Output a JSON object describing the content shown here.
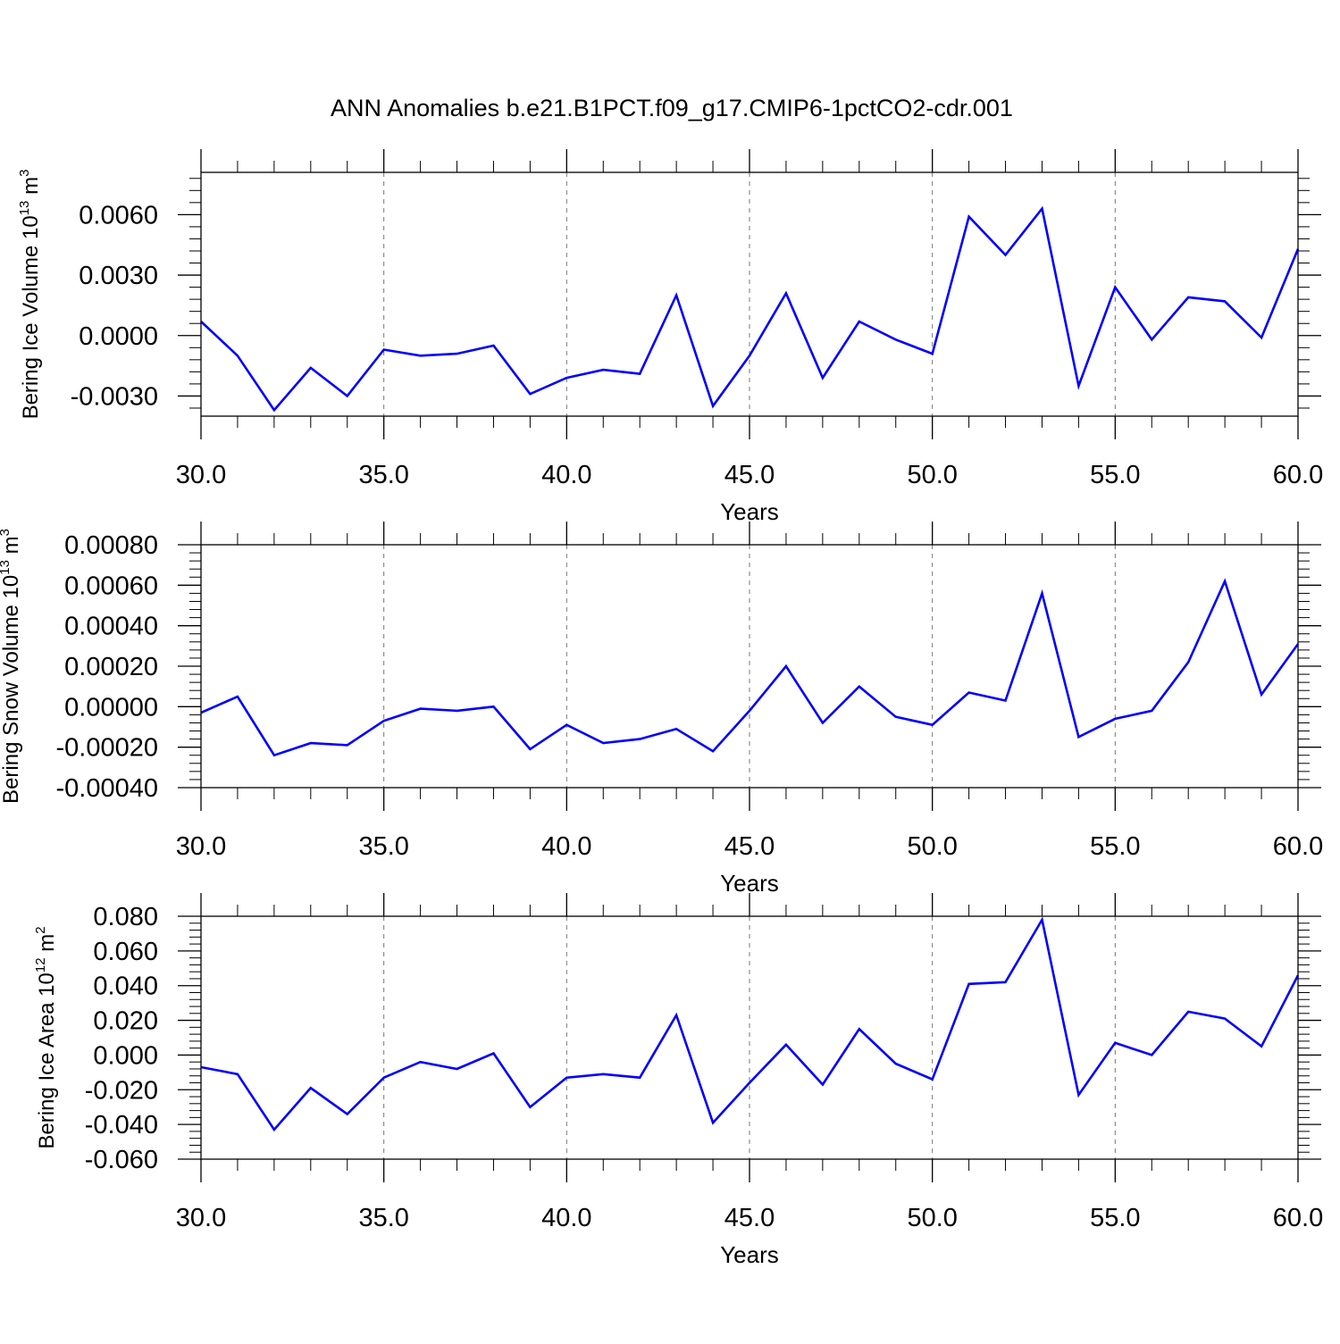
{
  "title": "ANN Anomalies b.e21.B1PCT.f09_g17.CMIP6-1pctCO2-cdr.001",
  "chart_data": [
    {
      "type": "line",
      "ylabel": "Bering Ice Volume 10",
      "ylabel_exp": "13",
      "ylabel_unit": " m",
      "ylabel_unit_exp": "3",
      "xlabel": "Years",
      "xlim": [
        30,
        60
      ],
      "ylim": [
        -0.004,
        0.0081
      ],
      "x_ticks": [
        30,
        35,
        40,
        45,
        50,
        55,
        60
      ],
      "x_tick_labels": [
        "30.0",
        "35.0",
        "40.0",
        "45.0",
        "50.0",
        "55.0",
        "60.0"
      ],
      "y_ticks": [
        -0.003,
        0,
        0.003,
        0.006
      ],
      "y_tick_labels": [
        "-0.0030",
        "0.0000",
        "0.0030",
        "0.0060"
      ],
      "grid_x": true,
      "line_color": "#0000ff",
      "x": [
        30,
        31,
        32,
        33,
        34,
        35,
        36,
        37,
        38,
        39,
        40,
        41,
        42,
        43,
        44,
        45,
        46,
        47,
        48,
        49,
        50,
        51,
        52,
        53,
        54,
        55,
        56,
        57,
        58,
        59,
        60
      ],
      "values": [
        0.0007,
        -0.001,
        -0.0037,
        -0.0016,
        -0.003,
        -0.0007,
        -0.001,
        -0.0009,
        -0.0005,
        -0.0029,
        -0.0021,
        -0.0017,
        -0.0019,
        0.002,
        -0.0035,
        -0.001,
        0.0021,
        -0.0021,
        0.0007,
        -0.0002,
        -0.0009,
        0.0059,
        0.004,
        0.0063,
        -0.0025,
        0.0024,
        -0.0002,
        0.0019,
        0.0017,
        -0.0001,
        0.0043
      ]
    },
    {
      "type": "line",
      "ylabel": "Bering Snow Volume 10",
      "ylabel_exp": "13",
      "ylabel_unit": " m",
      "ylabel_unit_exp": "3",
      "xlabel": "Years",
      "xlim": [
        30,
        60
      ],
      "ylim": [
        -0.0004,
        0.0008
      ],
      "x_ticks": [
        30,
        35,
        40,
        45,
        50,
        55,
        60
      ],
      "x_tick_labels": [
        "30.0",
        "35.0",
        "40.0",
        "45.0",
        "50.0",
        "55.0",
        "60.0"
      ],
      "y_ticks": [
        -0.0004,
        -0.0002,
        0,
        0.0002,
        0.0004,
        0.0006,
        0.0008
      ],
      "y_tick_labels": [
        "-0.00040",
        "-0.00020",
        "0.00000",
        "0.00020",
        "0.00040",
        "0.00060",
        "0.00080"
      ],
      "grid_x": true,
      "line_color": "#0000ff",
      "x": [
        30,
        31,
        32,
        33,
        34,
        35,
        36,
        37,
        38,
        39,
        40,
        41,
        42,
        43,
        44,
        45,
        46,
        47,
        48,
        49,
        50,
        51,
        52,
        53,
        54,
        55,
        56,
        57,
        58,
        59,
        60
      ],
      "values": [
        -3e-05,
        5e-05,
        -0.00024,
        -0.00018,
        -0.00019,
        -7e-05,
        -1e-05,
        -2e-05,
        0.0,
        -0.00021,
        -9e-05,
        -0.00018,
        -0.00016,
        -0.00011,
        -0.00022,
        -2e-05,
        0.0002,
        -8e-05,
        0.0001,
        -5e-05,
        -9e-05,
        7e-05,
        3e-05,
        0.00056,
        -0.00015,
        -6e-05,
        -2e-05,
        0.00022,
        0.00062,
        6e-05,
        0.00031
      ]
    },
    {
      "type": "line",
      "ylabel": "Bering Ice Area 10",
      "ylabel_exp": "12",
      "ylabel_unit": " m",
      "ylabel_unit_exp": "2",
      "xlabel": "Years",
      "xlim": [
        30,
        60
      ],
      "ylim": [
        -0.06,
        0.08
      ],
      "x_ticks": [
        30,
        35,
        40,
        45,
        50,
        55,
        60
      ],
      "x_tick_labels": [
        "30.0",
        "35.0",
        "40.0",
        "45.0",
        "50.0",
        "55.0",
        "60.0"
      ],
      "y_ticks": [
        -0.06,
        -0.04,
        -0.02,
        0,
        0.02,
        0.04,
        0.06,
        0.08
      ],
      "y_tick_labels": [
        "-0.060",
        "-0.040",
        "-0.020",
        "0.000",
        "0.020",
        "0.040",
        "0.060",
        "0.080"
      ],
      "grid_x": true,
      "line_color": "#0000ff",
      "x": [
        30,
        31,
        32,
        33,
        34,
        35,
        36,
        37,
        38,
        39,
        40,
        41,
        42,
        43,
        44,
        45,
        46,
        47,
        48,
        49,
        50,
        51,
        52,
        53,
        54,
        55,
        56,
        57,
        58,
        59,
        60
      ],
      "values": [
        -0.007,
        -0.011,
        -0.043,
        -0.019,
        -0.034,
        -0.013,
        -0.004,
        -0.008,
        0.001,
        -0.03,
        -0.013,
        -0.011,
        -0.013,
        0.023,
        -0.039,
        -0.016,
        0.006,
        -0.017,
        0.015,
        -0.005,
        -0.014,
        0.041,
        0.042,
        0.078,
        -0.023,
        0.007,
        0.0,
        0.025,
        0.021,
        0.005,
        0.046
      ]
    }
  ]
}
